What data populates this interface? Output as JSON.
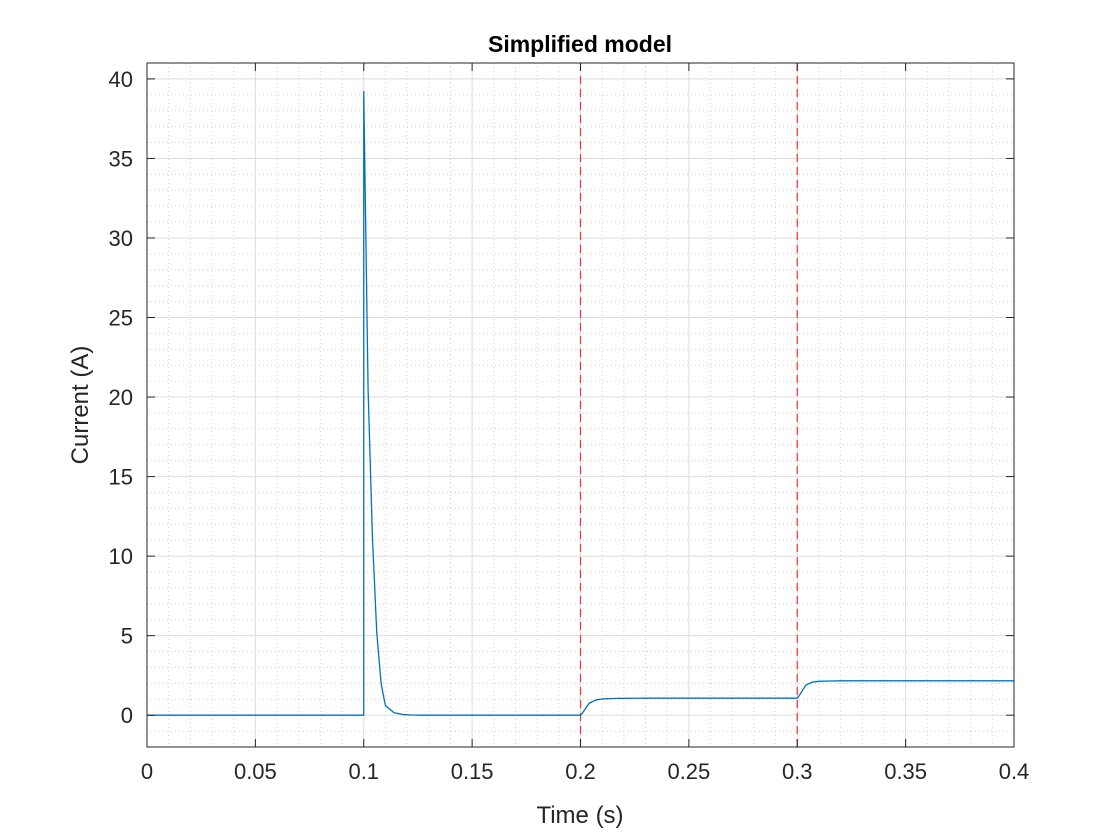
{
  "chart_data": {
    "type": "line",
    "title": "Simplified model",
    "xlabel": "Time (s)",
    "ylabel": "Current (A)",
    "xlim": [
      0,
      0.4
    ],
    "ylim": [
      -2,
      41
    ],
    "grid": true,
    "minor_grid": true,
    "xticks": [
      0,
      0.05,
      0.1,
      0.15,
      0.2,
      0.25,
      0.3,
      0.35,
      0.4
    ],
    "xtick_labels": [
      "0",
      "0.05",
      "0.1",
      "0.15",
      "0.2",
      "0.25",
      "0.3",
      "0.35",
      "0.4"
    ],
    "yticks": [
      0,
      5,
      10,
      15,
      20,
      25,
      30,
      35,
      40
    ],
    "ytick_labels": [
      "0",
      "5",
      "10",
      "15",
      "20",
      "25",
      "30",
      "35",
      "40"
    ],
    "series": [
      {
        "name": "current",
        "color": "#0072BD",
        "x": [
          0,
          0.1,
          0.1,
          0.102,
          0.104,
          0.106,
          0.108,
          0.11,
          0.114,
          0.118,
          0.122,
          0.126,
          0.13,
          0.2,
          0.201,
          0.204,
          0.207,
          0.21,
          0.215,
          0.22,
          0.23,
          0.3,
          0.301,
          0.304,
          0.307,
          0.31,
          0.315,
          0.32,
          0.33,
          0.4
        ],
        "y": [
          0,
          0,
          39.2,
          20.5,
          11.2,
          5.2,
          2.0,
          0.6,
          0.15,
          0.04,
          0.01,
          0,
          0,
          0,
          0.15,
          0.75,
          0.95,
          1.02,
          1.05,
          1.06,
          1.07,
          1.07,
          1.25,
          1.9,
          2.08,
          2.13,
          2.15,
          2.16,
          2.16,
          2.16
        ]
      }
    ],
    "vlines": [
      {
        "x": 0.2,
        "color": "#ff2e2e",
        "style": "dashed"
      },
      {
        "x": 0.3,
        "color": "#ff2e2e",
        "style": "dashed"
      }
    ]
  }
}
